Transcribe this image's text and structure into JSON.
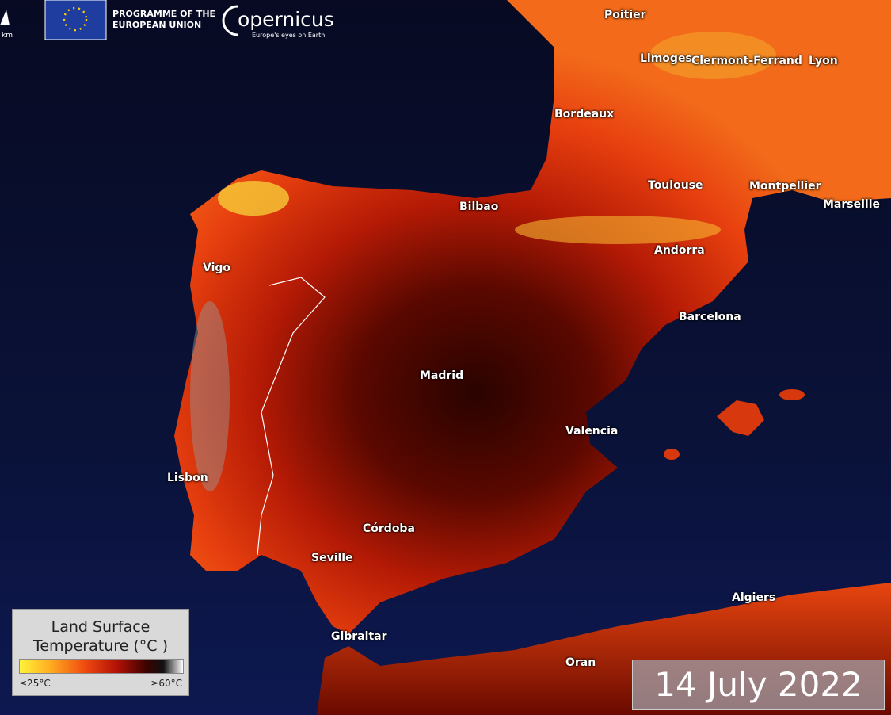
{
  "header": {
    "scale_unit": "km",
    "programme": "PROGRAMME OF THE",
    "programme_line2": "EUROPEAN UNION",
    "logo": "opernicus",
    "tagline": "Europe's eyes on Earth"
  },
  "cities": [
    "Poitier",
    "Limoges",
    "Clermont-Ferrand",
    "Lyon",
    "Bordeaux",
    "Toulouse",
    "Montpellier",
    "Marseille",
    "Bilbao",
    "Andorra",
    "Vigo",
    "Barcelona",
    "Madrid",
    "Valencia",
    "Lisbon",
    "Córdoba",
    "Seville",
    "Gibraltar",
    "Algiers",
    "Oran"
  ],
  "legend": {
    "title_line1": "Land Surface",
    "title_line2": "Temperature (°C )",
    "min_label": "≤25°C",
    "max_label": "≥60°C"
  },
  "date": "14 July 2022"
}
